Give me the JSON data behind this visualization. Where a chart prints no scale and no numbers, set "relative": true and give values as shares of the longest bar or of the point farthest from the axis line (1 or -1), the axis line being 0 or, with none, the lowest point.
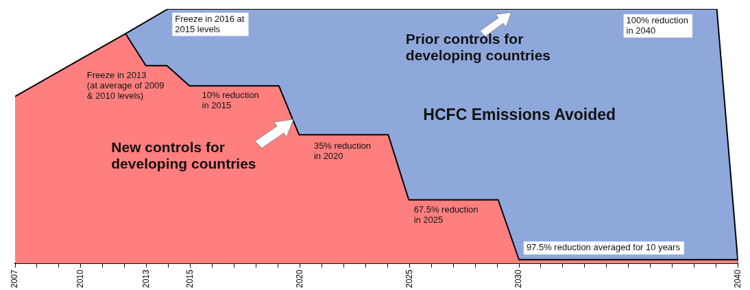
{
  "chart_data": {
    "type": "area",
    "title": "HCFC Emissions Avoided",
    "relative": true,
    "xlim": [
      2007,
      2040
    ],
    "xticks": [
      2007,
      {
        "value": 2008,
        "label": null
      },
      {
        "value": 2009,
        "label": null
      },
      2010,
      {
        "value": 2011,
        "label": null
      },
      {
        "value": 2012,
        "label": null
      },
      2013,
      {
        "value": 2014,
        "label": null
      },
      2015,
      {
        "value": 2016,
        "label": null
      },
      {
        "value": 2017,
        "label": null
      },
      {
        "value": 2018,
        "label": null
      },
      {
        "value": 2019,
        "label": null
      },
      2020,
      {
        "value": 2021,
        "label": null
      },
      {
        "value": 2022,
        "label": null
      },
      {
        "value": 2023,
        "label": null
      },
      {
        "value": 2024,
        "label": null
      },
      2025,
      {
        "value": 2026,
        "label": null
      },
      {
        "value": 2027,
        "label": null
      },
      {
        "value": 2028,
        "label": null
      },
      {
        "value": 2029,
        "label": null
      },
      2030,
      {
        "value": 2031,
        "label": null
      },
      {
        "value": 2032,
        "label": null
      },
      {
        "value": 2033,
        "label": null
      },
      {
        "value": 2034,
        "label": null
      },
      {
        "value": 2035,
        "label": null
      },
      {
        "value": 2036,
        "label": null
      },
      {
        "value": 2037,
        "label": null
      },
      {
        "value": 2038,
        "label": null
      },
      {
        "value": 2039,
        "label": null
      },
      2040
    ],
    "series": [
      {
        "name": "Prior controls for\ndeveloping countries",
        "color": "#8fa8dc",
        "x": [
          2012.04,
          2013.98,
          2039.03,
          2040
        ],
        "values": [
          0.903,
          1,
          1,
          0
        ]
      },
      {
        "name": "New controls for\ndeveloping countries",
        "color": "#ff7f7f",
        "x": [
          2007,
          2012.04,
          2012.97,
          2013.93,
          2014.96,
          2019.04,
          2019.96,
          2024.03,
          2024.97,
          2029.05,
          2030,
          2040
        ],
        "values": [
          0.656,
          0.903,
          0.777,
          0.777,
          0.698,
          0.698,
          0.506,
          0.506,
          0.25,
          0.25,
          0.015,
          0.015
        ]
      }
    ],
    "annotations": [
      "Freeze in 2016 at\n2015 levels",
      "Freeze in 2013\n(at average of 2009\n& 2010 levels)",
      "10% reduction\nin 2015",
      "35% reduction\nin 2020",
      "67.5% reduction\nin 2025",
      "97.5% reduction averaged for 10 years",
      "100% reduction\nin 2040"
    ],
    "legend": false,
    "grid": false
  }
}
